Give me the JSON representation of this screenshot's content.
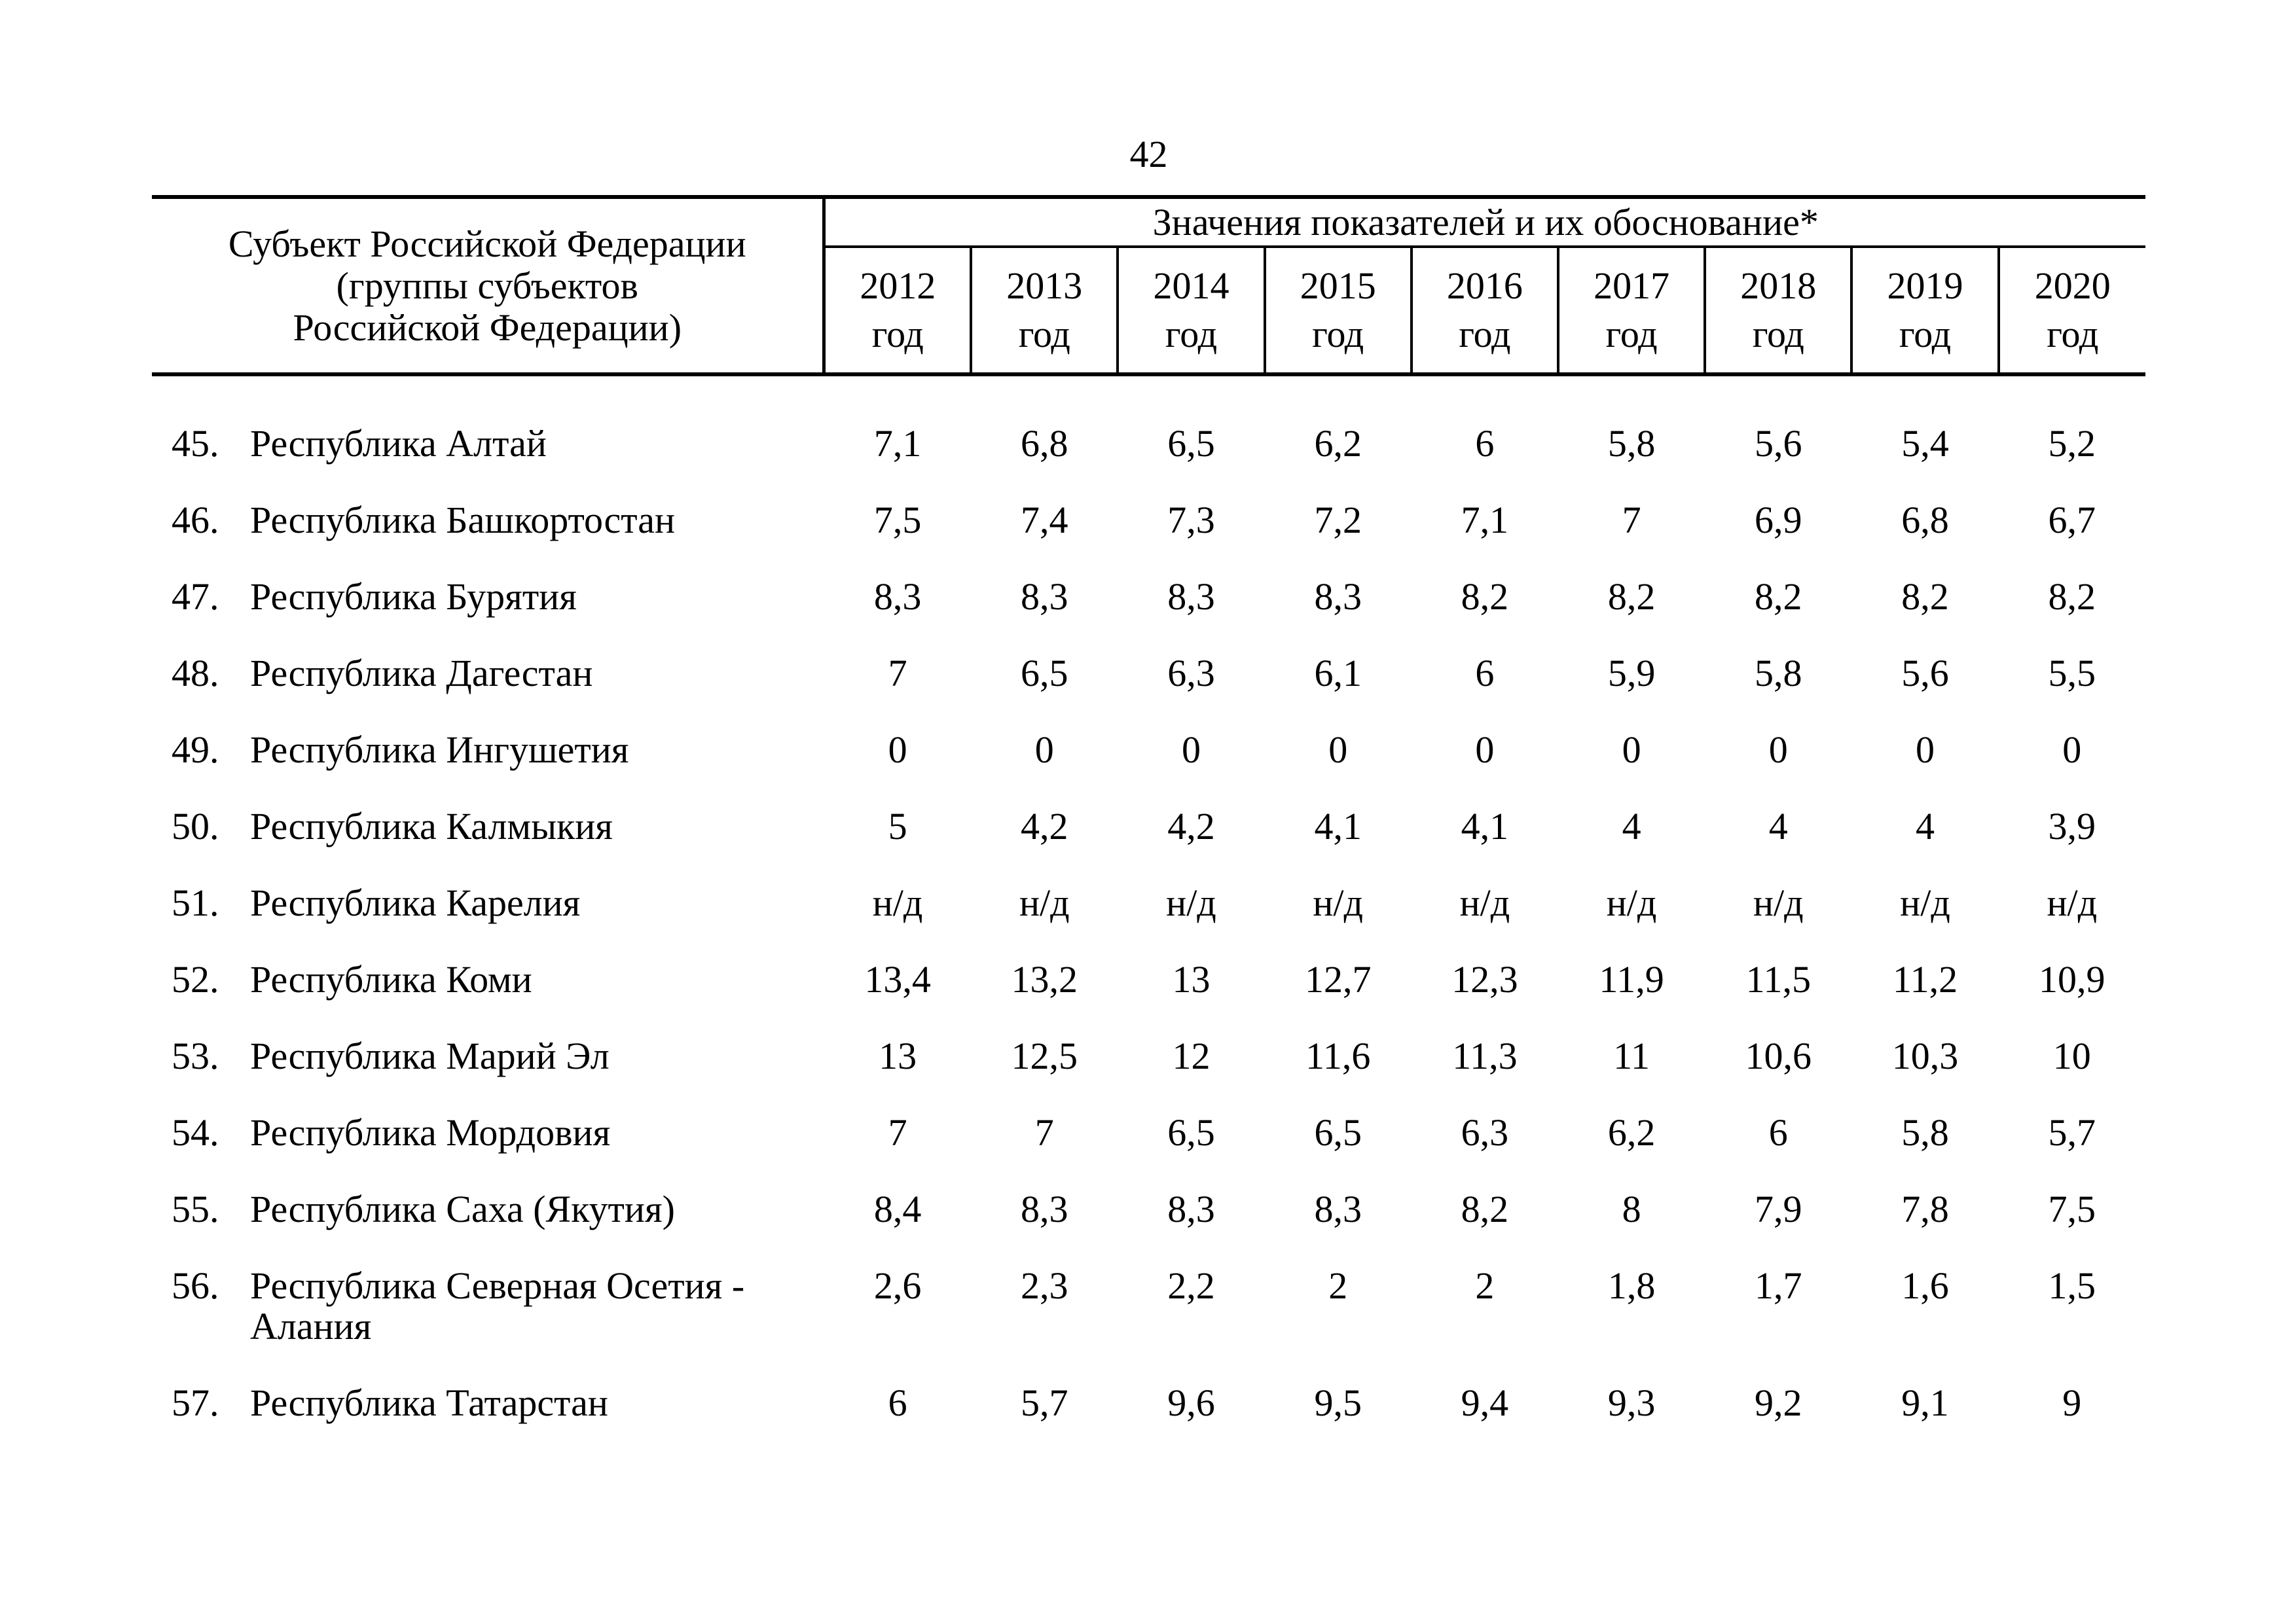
{
  "page_number": "42",
  "table": {
    "subject_header_lines": [
      "Субъект Российской Федерации",
      "(группы субъектов",
      "Российской Федерации)"
    ],
    "values_header": "Значения показателей и их обоснование*",
    "years": [
      "2012",
      "2013",
      "2014",
      "2015",
      "2016",
      "2017",
      "2018",
      "2019",
      "2020"
    ],
    "year_word": "год"
  },
  "rows": [
    {
      "num": "45.",
      "name": "Республика Алтай",
      "values": [
        "7,1",
        "6,8",
        "6,5",
        "6,2",
        "6",
        "5,8",
        "5,6",
        "5,4",
        "5,2"
      ]
    },
    {
      "num": "46.",
      "name": "Республика Башкортостан",
      "values": [
        "7,5",
        "7,4",
        "7,3",
        "7,2",
        "7,1",
        "7",
        "6,9",
        "6,8",
        "6,7"
      ]
    },
    {
      "num": "47.",
      "name": "Республика Бурятия",
      "values": [
        "8,3",
        "8,3",
        "8,3",
        "8,3",
        "8,2",
        "8,2",
        "8,2",
        "8,2",
        "8,2"
      ]
    },
    {
      "num": "48.",
      "name": "Республика Дагестан",
      "values": [
        "7",
        "6,5",
        "6,3",
        "6,1",
        "6",
        "5,9",
        "5,8",
        "5,6",
        "5,5"
      ]
    },
    {
      "num": "49.",
      "name": "Республика Ингушетия",
      "values": [
        "0",
        "0",
        "0",
        "0",
        "0",
        "0",
        "0",
        "0",
        "0"
      ]
    },
    {
      "num": "50.",
      "name": "Республика Калмыкия",
      "values": [
        "5",
        "4,2",
        "4,2",
        "4,1",
        "4,1",
        "4",
        "4",
        "4",
        "3,9"
      ]
    },
    {
      "num": "51.",
      "name": "Республика Карелия",
      "values": [
        "н/д",
        "н/д",
        "н/д",
        "н/д",
        "н/д",
        "н/д",
        "н/д",
        "н/д",
        "н/д"
      ]
    },
    {
      "num": "52.",
      "name": "Республика Коми",
      "values": [
        "13,4",
        "13,2",
        "13",
        "12,7",
        "12,3",
        "11,9",
        "11,5",
        "11,2",
        "10,9"
      ]
    },
    {
      "num": "53.",
      "name": "Республика Марий Эл",
      "values": [
        "13",
        "12,5",
        "12",
        "11,6",
        "11,3",
        "11",
        "10,6",
        "10,3",
        "10"
      ]
    },
    {
      "num": "54.",
      "name": "Республика Мордовия",
      "values": [
        "7",
        "7",
        "6,5",
        "6,5",
        "6,3",
        "6,2",
        "6",
        "5,8",
        "5,7"
      ]
    },
    {
      "num": "55.",
      "name": "Республика Саха (Якутия)",
      "values": [
        "8,4",
        "8,3",
        "8,3",
        "8,3",
        "8,2",
        "8",
        "7,9",
        "7,8",
        "7,5"
      ]
    },
    {
      "num": "56.",
      "name": "Республика Северная Осетия - Алания",
      "values": [
        "2,6",
        "2,3",
        "2,2",
        "2",
        "2",
        "1,8",
        "1,7",
        "1,6",
        "1,5"
      ]
    },
    {
      "num": "57.",
      "name": "Республика Татарстан",
      "values": [
        "6",
        "5,7",
        "9,6",
        "9,5",
        "9,4",
        "9,3",
        "9,2",
        "9,1",
        "9"
      ]
    }
  ]
}
